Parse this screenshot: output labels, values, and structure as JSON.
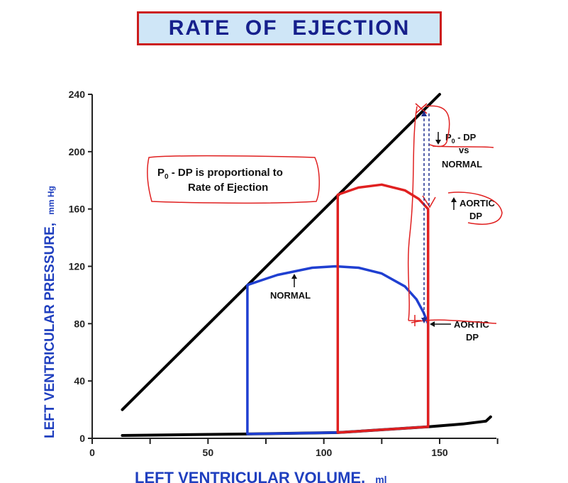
{
  "title": "RATE  OF  EJECTION",
  "axes": {
    "y_label_main": "LEFT  VENTRICULAR  PRESSURE,",
    "y_label_unit": "mm  Hg",
    "x_label_main": "LEFT  VENTRICULAR  VOLUME,",
    "x_label_unit": "ml",
    "y_ticks": [
      "0",
      "40",
      "80",
      "120",
      "160",
      "200",
      "240"
    ],
    "x_ticks": [
      "0",
      "50",
      "100",
      "150"
    ]
  },
  "annotations": {
    "box_line1_p": "P",
    "box_line1_sub": "0",
    "box_line1_rest": " - DP  is proportional to",
    "box_line2": "Rate of Ejection",
    "normal_label": "NORMAL",
    "aortic_dp_top_1": "AORTIC",
    "aortic_dp_top_2": "DP",
    "aortic_dp_bottom_1": "AORTIC",
    "aortic_dp_bottom_2": "DP",
    "p0_dp_p": "P",
    "p0_dp_sub": "0",
    "p0_dp_rest": " -  DP",
    "vs": "vs",
    "normal_top": "NORMAL"
  },
  "chart_data": {
    "type": "line",
    "xlim": [
      0,
      175
    ],
    "ylim": [
      0,
      240
    ],
    "series": [
      {
        "role": "systolic-pressure-limit",
        "color": "#000000",
        "x": [
          13,
          150
        ],
        "y": [
          20,
          240
        ]
      },
      {
        "role": "diastolic-filling-curve",
        "color": "#000000",
        "x": [
          13,
          40,
          67,
          106,
          145,
          160,
          170,
          172
        ],
        "y": [
          2,
          2.5,
          3,
          4,
          8,
          10,
          12,
          15
        ]
      },
      {
        "role": "normal-loop",
        "color": "#1f3fd1",
        "x": [
          67,
          67,
          80,
          95,
          105,
          115,
          125,
          135,
          140,
          143,
          145,
          145,
          106,
          67
        ],
        "y": [
          3,
          107,
          114,
          119,
          120,
          119,
          115,
          106,
          97,
          88,
          80,
          8,
          4,
          3
        ]
      },
      {
        "role": "increased-afterload-loop",
        "color": "#e02020",
        "x": [
          106,
          106,
          115,
          125,
          135,
          141,
          145,
          145,
          106
        ],
        "y": [
          4,
          170,
          175,
          177,
          173,
          167,
          160,
          8,
          4
        ]
      }
    ]
  }
}
